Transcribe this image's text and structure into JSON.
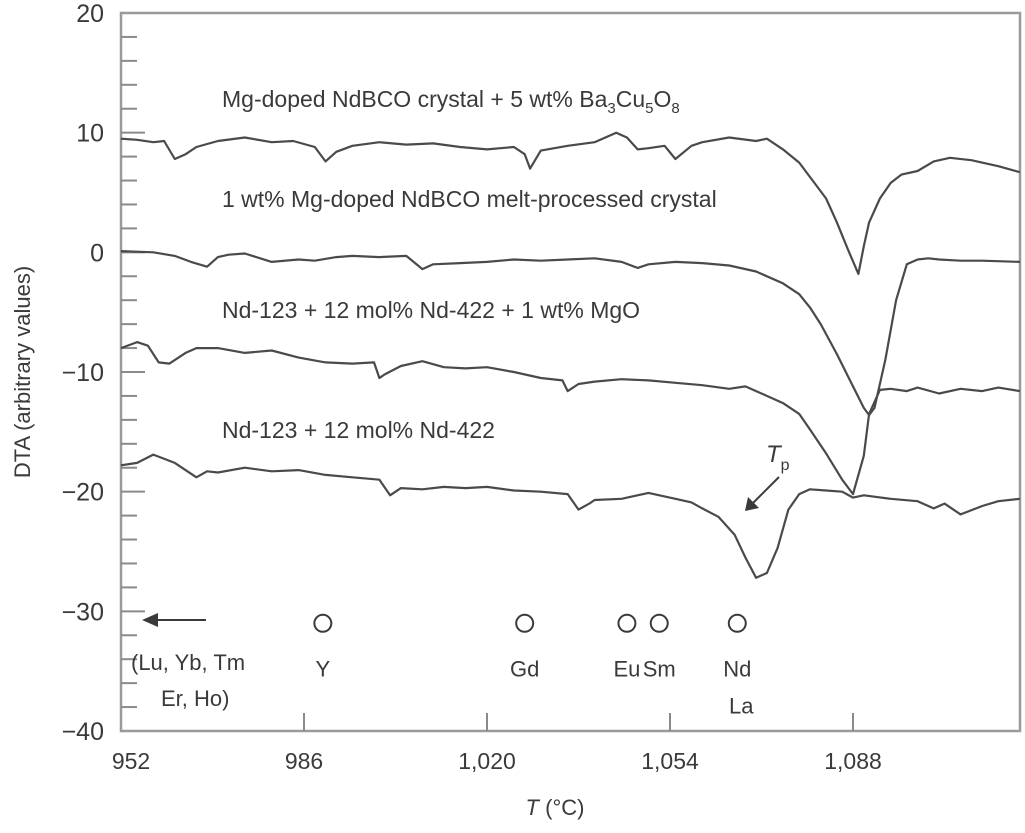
{
  "chart_data": {
    "type": "line",
    "title": "",
    "xlabel": "T (°C)",
    "xlabel_var": "T",
    "xlabel_unit": " (°C)",
    "ylabel": "DTA (arbitrary values)",
    "xlim": [
      952,
      1119
    ],
    "ylim": [
      -40,
      20
    ],
    "x_ticks": [
      952,
      986,
      1020,
      1054,
      1088
    ],
    "x_tick_labels": [
      "952",
      "986",
      "1,020",
      "1,054",
      "1,088"
    ],
    "y_ticks": [
      20,
      10,
      0,
      -10,
      -20,
      -30,
      -40
    ],
    "y_tick_labels": [
      "20",
      "10",
      "0",
      "−10",
      "−20",
      "−30",
      "−40"
    ],
    "grid": false,
    "series": [
      {
        "name": "Mg-doped NdBCO crystal + 5 wt% Ba3Cu5O8",
        "label_main": "Mg-doped NdBCO crystal + 5 wt% Ba",
        "label_parts": [
          "3",
          "Cu",
          "5",
          "O",
          "8"
        ],
        "x": [
          952,
          955,
          958,
          960,
          962,
          964,
          966,
          970,
          975,
          980,
          984,
          988,
          990,
          992,
          995,
          1000,
          1005,
          1010,
          1015,
          1020,
          1025,
          1027,
          1028,
          1030,
          1035,
          1040,
          1044,
          1046,
          1048,
          1050,
          1053,
          1055,
          1058,
          1060,
          1065,
          1070,
          1072,
          1075,
          1078,
          1080,
          1083,
          1085,
          1087,
          1089,
          1090,
          1091,
          1093,
          1095,
          1097,
          1100,
          1103,
          1106,
          1110,
          1115,
          1119
        ],
        "y": [
          9.5,
          9.4,
          9.2,
          9.3,
          7.8,
          8.2,
          8.8,
          9.3,
          9.6,
          9.2,
          9.3,
          8.8,
          7.6,
          8.4,
          8.9,
          9.2,
          9.0,
          9.1,
          8.8,
          8.6,
          8.8,
          8.2,
          7.0,
          8.5,
          8.9,
          9.2,
          10.0,
          9.6,
          8.6,
          8.7,
          8.9,
          7.8,
          8.9,
          9.2,
          9.6,
          9.3,
          9.5,
          8.6,
          7.5,
          6.3,
          4.5,
          2.5,
          0.3,
          -1.8,
          0.5,
          2.5,
          4.5,
          5.8,
          6.5,
          6.8,
          7.6,
          7.9,
          7.7,
          7.2,
          6.7
        ]
      },
      {
        "name": "1 wt% Mg-doped NdBCO melt-processed crystal",
        "x": [
          952,
          958,
          962,
          965,
          968,
          970,
          972,
          975,
          980,
          985,
          988,
          992,
          995,
          1000,
          1005,
          1008,
          1010,
          1015,
          1020,
          1025,
          1030,
          1035,
          1040,
          1045,
          1048,
          1050,
          1055,
          1060,
          1065,
          1070,
          1075,
          1078,
          1080,
          1082,
          1085,
          1088,
          1090,
          1091,
          1092,
          1094,
          1096,
          1098,
          1100,
          1102,
          1104,
          1108,
          1112,
          1119
        ],
        "y": [
          0.1,
          0.0,
          -0.3,
          -0.8,
          -1.2,
          -0.4,
          -0.2,
          -0.1,
          -0.8,
          -0.6,
          -0.7,
          -0.4,
          -0.3,
          -0.4,
          -0.3,
          -1.4,
          -1.0,
          -0.9,
          -0.8,
          -0.6,
          -0.7,
          -0.6,
          -0.5,
          -0.8,
          -1.3,
          -1.0,
          -0.8,
          -0.9,
          -1.1,
          -1.6,
          -2.6,
          -3.5,
          -4.6,
          -6.0,
          -8.5,
          -11.2,
          -13.0,
          -13.6,
          -13.0,
          -9.0,
          -4.0,
          -1.0,
          -0.6,
          -0.5,
          -0.6,
          -0.7,
          -0.7,
          -0.8
        ]
      },
      {
        "name": "Nd-123 + 12 mol% Nd-422 + 1 wt% MgO",
        "x": [
          952,
          955,
          957,
          959,
          961,
          964,
          966,
          970,
          975,
          980,
          985,
          990,
          995,
          999,
          1000,
          1001,
          1004,
          1008,
          1012,
          1016,
          1020,
          1025,
          1030,
          1034,
          1035,
          1037,
          1040,
          1045,
          1050,
          1055,
          1060,
          1065,
          1068,
          1070,
          1075,
          1078,
          1080,
          1083,
          1086,
          1088,
          1090,
          1091,
          1093,
          1095,
          1098,
          1100,
          1104,
          1108,
          1112,
          1115,
          1119
        ],
        "y": [
          -8.0,
          -7.5,
          -7.8,
          -9.2,
          -9.3,
          -8.4,
          -8.0,
          -8.0,
          -8.4,
          -8.2,
          -8.8,
          -9.2,
          -9.3,
          -9.2,
          -10.5,
          -10.2,
          -9.5,
          -9.1,
          -9.6,
          -9.7,
          -9.6,
          -10.0,
          -10.5,
          -10.7,
          -11.6,
          -11.0,
          -10.8,
          -10.6,
          -10.7,
          -10.9,
          -11.1,
          -11.4,
          -11.2,
          -11.6,
          -12.6,
          -13.5,
          -14.8,
          -16.8,
          -19.0,
          -20.2,
          -17.0,
          -13.5,
          -11.5,
          -11.4,
          -11.6,
          -11.3,
          -11.8,
          -11.4,
          -11.6,
          -11.3,
          -11.6
        ]
      },
      {
        "name": "Nd-123 + 12 mol% Nd-422",
        "x": [
          952,
          955,
          958,
          962,
          966,
          968,
          970,
          975,
          980,
          985,
          990,
          995,
          1000,
          1002,
          1004,
          1008,
          1012,
          1016,
          1020,
          1025,
          1030,
          1035,
          1037,
          1039,
          1040,
          1045,
          1050,
          1055,
          1058,
          1060,
          1063,
          1066,
          1068,
          1070,
          1072,
          1074,
          1076,
          1078,
          1080,
          1083,
          1086,
          1088,
          1090,
          1095,
          1100,
          1103,
          1105,
          1108,
          1112,
          1115,
          1119
        ],
        "y": [
          -17.8,
          -17.6,
          -16.9,
          -17.6,
          -18.8,
          -18.3,
          -18.4,
          -18.0,
          -18.3,
          -18.2,
          -18.6,
          -18.8,
          -19.0,
          -20.3,
          -19.7,
          -19.8,
          -19.6,
          -19.7,
          -19.6,
          -19.9,
          -20.0,
          -20.2,
          -21.5,
          -21.0,
          -20.7,
          -20.6,
          -20.1,
          -20.6,
          -20.9,
          -21.4,
          -22.1,
          -23.6,
          -25.5,
          -27.2,
          -26.8,
          -24.7,
          -21.5,
          -20.2,
          -19.8,
          -19.9,
          -20.0,
          -20.5,
          -20.3,
          -20.6,
          -20.8,
          -21.4,
          -21.0,
          -21.9,
          -21.2,
          -20.8,
          -20.6
        ]
      }
    ],
    "annotations": [
      {
        "text": "Tp",
        "var": "T",
        "sub": "p",
        "x": 1069,
        "y": -16.5,
        "arrow_to": [
          1064,
          -21.5
        ]
      },
      {
        "text": "(Lu, Yb, Tm",
        "line": 1
      },
      {
        "text": "Er, Ho)",
        "line": 2
      },
      {
        "type": "arrow-left",
        "at_y": -31,
        "from_x": 965,
        "to_x": 953
      }
    ],
    "markers": [
      {
        "label": "Y",
        "x": 989.5,
        "y": -31
      },
      {
        "label": "Gd",
        "x": 1027,
        "y": -31
      },
      {
        "label": "Eu",
        "x": 1046,
        "y": -31
      },
      {
        "label": "Sm",
        "x": 1052,
        "y": -31
      },
      {
        "label": "Nd",
        "label2": "La",
        "x": 1066.5,
        "y": -31
      }
    ],
    "series_labels": [
      {
        "text": "1 wt% Mg-doped NdBCO melt-processed crystal",
        "x": 970,
        "y": 3.5
      },
      {
        "text": "Nd-123 + 12 mol% Nd-422 + 1 wt% MgO",
        "x": 970,
        "y": -5.8
      },
      {
        "text": "Nd-123 + 12 mol% Nd-422",
        "x": 970,
        "y": -15.8
      }
    ]
  }
}
